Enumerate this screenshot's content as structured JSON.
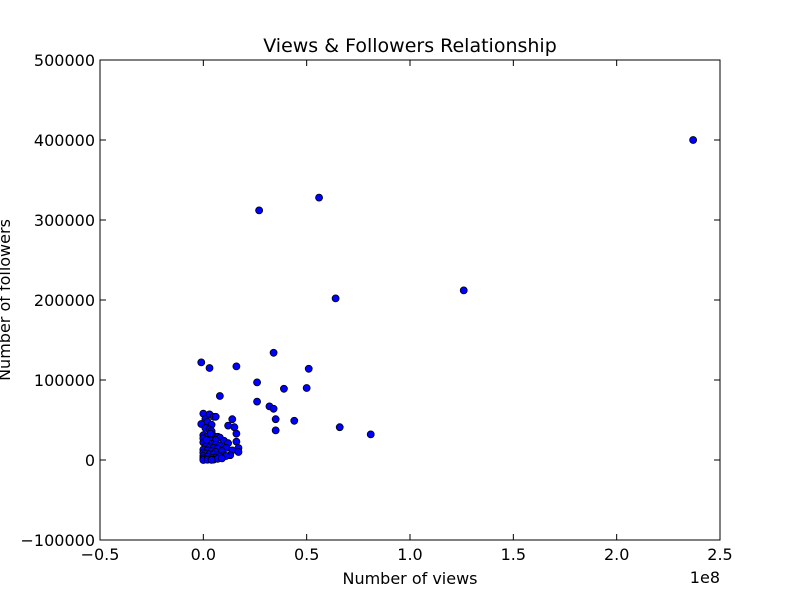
{
  "chart_data": {
    "type": "scatter",
    "title": "Views & Followers Relationship",
    "xlabel": "Number of views",
    "ylabel": "Number of followers",
    "x_offset_label": "1e8",
    "xlim": [
      -0.5,
      2.5
    ],
    "ylim": [
      -100000,
      500000
    ],
    "x_ticks": [
      -0.5,
      0.0,
      0.5,
      1.0,
      1.5,
      2.0,
      2.5
    ],
    "x_tick_labels": [
      "−0.5",
      "0.0",
      "0.5",
      "1.0",
      "1.5",
      "2.0",
      "2.5"
    ],
    "y_ticks": [
      -100000,
      0,
      100000,
      200000,
      300000,
      400000,
      500000
    ],
    "y_tick_labels": [
      "−100000",
      "0",
      "100000",
      "200000",
      "300000",
      "400000",
      "500000"
    ],
    "grid": false,
    "marker_color": "#0000ff",
    "marker_edge_color": "#000000",
    "series": [
      {
        "points": [
          [
            2.37,
            400000
          ],
          [
            0.56,
            328000
          ],
          [
            0.27,
            312000
          ],
          [
            0.64,
            202000
          ],
          [
            1.26,
            212000
          ],
          [
            0.34,
            134000
          ],
          [
            -0.01,
            122000
          ],
          [
            0.03,
            115000
          ],
          [
            0.16,
            117000
          ],
          [
            0.51,
            114000
          ],
          [
            0.26,
            97000
          ],
          [
            0.39,
            89000
          ],
          [
            0.5,
            90000
          ],
          [
            0.08,
            80000
          ],
          [
            0.26,
            73000
          ],
          [
            0.32,
            67000
          ],
          [
            0.34,
            64000
          ],
          [
            0.35,
            51000
          ],
          [
            0.44,
            49000
          ],
          [
            0.66,
            41000
          ],
          [
            0.35,
            37000
          ],
          [
            0.81,
            32000
          ],
          [
            0.0,
            58000
          ],
          [
            0.03,
            57000
          ],
          [
            0.05,
            54000
          ],
          [
            0.06,
            54000
          ],
          [
            0.01,
            51000
          ],
          [
            0.02,
            48000
          ],
          [
            0.14,
            51000
          ],
          [
            -0.01,
            45000
          ],
          [
            0.04,
            44000
          ],
          [
            0.12,
            43000
          ],
          [
            0.15,
            41000
          ],
          [
            0.01,
            40000
          ],
          [
            0.03,
            38000
          ],
          [
            0.04,
            36000
          ],
          [
            0.16,
            33000
          ],
          [
            0.0,
            31000
          ],
          [
            0.02,
            30000
          ],
          [
            0.05,
            30000
          ],
          [
            0.07,
            29000
          ],
          [
            0.08,
            28000
          ],
          [
            0.0,
            27000
          ],
          [
            0.03,
            26000
          ],
          [
            0.06,
            25000
          ],
          [
            0.1,
            24000
          ],
          [
            0.16,
            23000
          ],
          [
            0.0,
            22000
          ],
          [
            0.02,
            21000
          ],
          [
            0.04,
            20000
          ],
          [
            0.06,
            19000
          ],
          [
            0.08,
            18000
          ],
          [
            0.12,
            21000
          ],
          [
            0.01,
            17000
          ],
          [
            0.03,
            16000
          ],
          [
            0.05,
            15000
          ],
          [
            0.07,
            14000
          ],
          [
            0.11,
            15000
          ],
          [
            0.17,
            15000
          ],
          [
            0.0,
            13000
          ],
          [
            0.02,
            12000
          ],
          [
            0.04,
            11000
          ],
          [
            0.06,
            10000
          ],
          [
            0.09,
            11000
          ],
          [
            0.14,
            12000
          ],
          [
            0.17,
            10000
          ],
          [
            0.0,
            9000
          ],
          [
            0.01,
            8000
          ],
          [
            0.03,
            7000
          ],
          [
            0.05,
            7000
          ],
          [
            0.07,
            6000
          ],
          [
            0.1,
            6000
          ],
          [
            0.13,
            6000
          ],
          [
            0.0,
            5000
          ],
          [
            0.02,
            4000
          ],
          [
            0.04,
            3000
          ],
          [
            0.06,
            3000
          ],
          [
            0.08,
            4000
          ],
          [
            0.11,
            5000
          ],
          [
            0.0,
            2000
          ],
          [
            0.01,
            1000
          ],
          [
            0.03,
            1000
          ],
          [
            0.05,
            500
          ],
          [
            0.07,
            1500
          ],
          [
            0.0,
            0
          ],
          [
            0.02,
            300
          ],
          [
            0.04,
            200
          ],
          [
            0.09,
            2000
          ],
          [
            0.015,
            25000
          ],
          [
            0.035,
            33000
          ]
        ]
      }
    ]
  }
}
